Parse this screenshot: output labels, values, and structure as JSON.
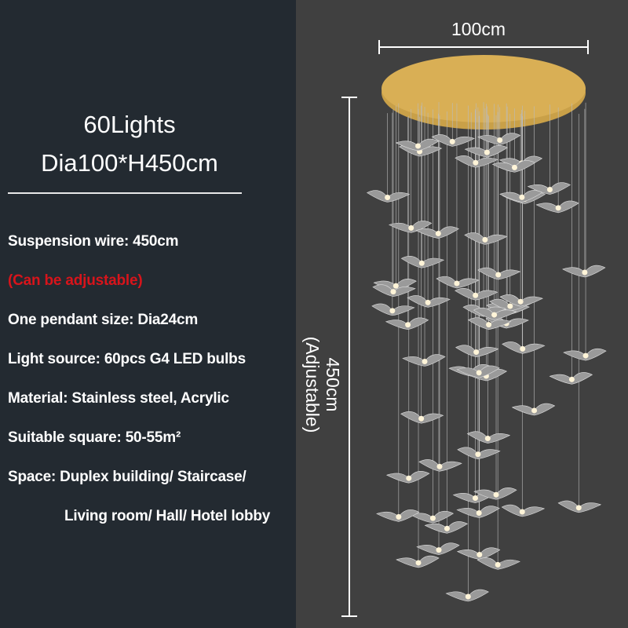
{
  "heading": {
    "lights": "60Lights",
    "size": "Dia100*H450cm"
  },
  "specs": [
    "Suspension wire: 450cm",
    "(Can be adjustable)",
    "One pendant size: Dia24cm",
    "Light source: 60pcs G4 LED bulbs",
    "Material: Stainless steel, Acrylic",
    "Suitable square: 50-55m²",
    "Space: Duplex building/ Staircase/",
    "Living room/ Hall/ Hotel lobby"
  ],
  "diagram": {
    "width_label": "100cm",
    "height_label": "450cm",
    "height_note": "(Adjustable)",
    "canopy_color": "#d4a84a",
    "note_color": "#d8141b"
  }
}
